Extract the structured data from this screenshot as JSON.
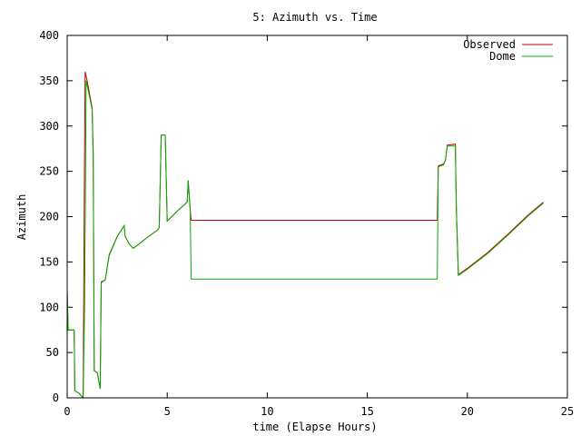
{
  "chart_data": {
    "type": "line",
    "title": "5: Azimuth vs. Time",
    "xlabel": "time (Elapse Hours)",
    "ylabel": "Azimuth",
    "xlim": [
      0,
      25
    ],
    "ylim": [
      0,
      400
    ],
    "xticks": [
      0,
      5,
      10,
      15,
      20,
      25
    ],
    "yticks": [
      0,
      50,
      100,
      150,
      200,
      250,
      300,
      350,
      400
    ],
    "grid": false,
    "legend_position": "top-right",
    "series": [
      {
        "name": "Observed",
        "color": "#cc0000",
        "points": [
          [
            0.0,
            118
          ],
          [
            0.05,
            75
          ],
          [
            0.35,
            75
          ],
          [
            0.38,
            8
          ],
          [
            0.6,
            5
          ],
          [
            0.8,
            0
          ],
          [
            0.85,
            200
          ],
          [
            0.9,
            360
          ],
          [
            1.0,
            350
          ],
          [
            1.25,
            320
          ],
          [
            1.3,
            270
          ],
          [
            1.35,
            30
          ],
          [
            1.5,
            28
          ],
          [
            1.65,
            10
          ],
          [
            1.7,
            128
          ],
          [
            1.9,
            130
          ],
          [
            2.1,
            158
          ],
          [
            2.5,
            178
          ],
          [
            2.85,
            190
          ],
          [
            2.9,
            178
          ],
          [
            3.1,
            170
          ],
          [
            3.3,
            165
          ],
          [
            3.6,
            170
          ],
          [
            4.0,
            177
          ],
          [
            4.5,
            185
          ],
          [
            4.6,
            188
          ],
          [
            4.7,
            290
          ],
          [
            4.9,
            290
          ],
          [
            5.0,
            195
          ],
          [
            5.5,
            206
          ],
          [
            6.0,
            216
          ],
          [
            6.05,
            240
          ],
          [
            6.15,
            208
          ],
          [
            6.2,
            196
          ],
          [
            18.5,
            196
          ],
          [
            18.55,
            256
          ],
          [
            18.8,
            258
          ],
          [
            18.9,
            262
          ],
          [
            19.0,
            279
          ],
          [
            19.4,
            280
          ],
          [
            19.45,
            208
          ],
          [
            19.55,
            136
          ],
          [
            20.0,
            143
          ],
          [
            21.0,
            160
          ],
          [
            22.0,
            180
          ],
          [
            23.0,
            201
          ],
          [
            23.8,
            216
          ]
        ]
      },
      {
        "name": "Dome",
        "color": "#00aa00",
        "points": [
          [
            0.0,
            118
          ],
          [
            0.05,
            75
          ],
          [
            0.35,
            75
          ],
          [
            0.38,
            8
          ],
          [
            0.6,
            5
          ],
          [
            0.8,
            0
          ],
          [
            0.87,
            100
          ],
          [
            0.95,
            350
          ],
          [
            1.0,
            345
          ],
          [
            1.25,
            318
          ],
          [
            1.3,
            260
          ],
          [
            1.35,
            30
          ],
          [
            1.5,
            28
          ],
          [
            1.65,
            10
          ],
          [
            1.7,
            127
          ],
          [
            1.9,
            130
          ],
          [
            2.1,
            157
          ],
          [
            2.5,
            178
          ],
          [
            2.85,
            190
          ],
          [
            2.9,
            178
          ],
          [
            3.1,
            170
          ],
          [
            3.3,
            165
          ],
          [
            3.6,
            170
          ],
          [
            4.0,
            177
          ],
          [
            4.5,
            185
          ],
          [
            4.6,
            188
          ],
          [
            4.7,
            290
          ],
          [
            4.9,
            290
          ],
          [
            5.0,
            195
          ],
          [
            5.5,
            206
          ],
          [
            6.0,
            216
          ],
          [
            6.05,
            240
          ],
          [
            6.15,
            208
          ],
          [
            6.2,
            131
          ],
          [
            18.5,
            131
          ],
          [
            18.55,
            255
          ],
          [
            18.8,
            257
          ],
          [
            18.9,
            262
          ],
          [
            19.0,
            278
          ],
          [
            19.4,
            278
          ],
          [
            19.45,
            208
          ],
          [
            19.55,
            135
          ],
          [
            20.0,
            142
          ],
          [
            21.0,
            159
          ],
          [
            22.0,
            179
          ],
          [
            23.0,
            200
          ],
          [
            23.8,
            215
          ]
        ]
      }
    ]
  }
}
